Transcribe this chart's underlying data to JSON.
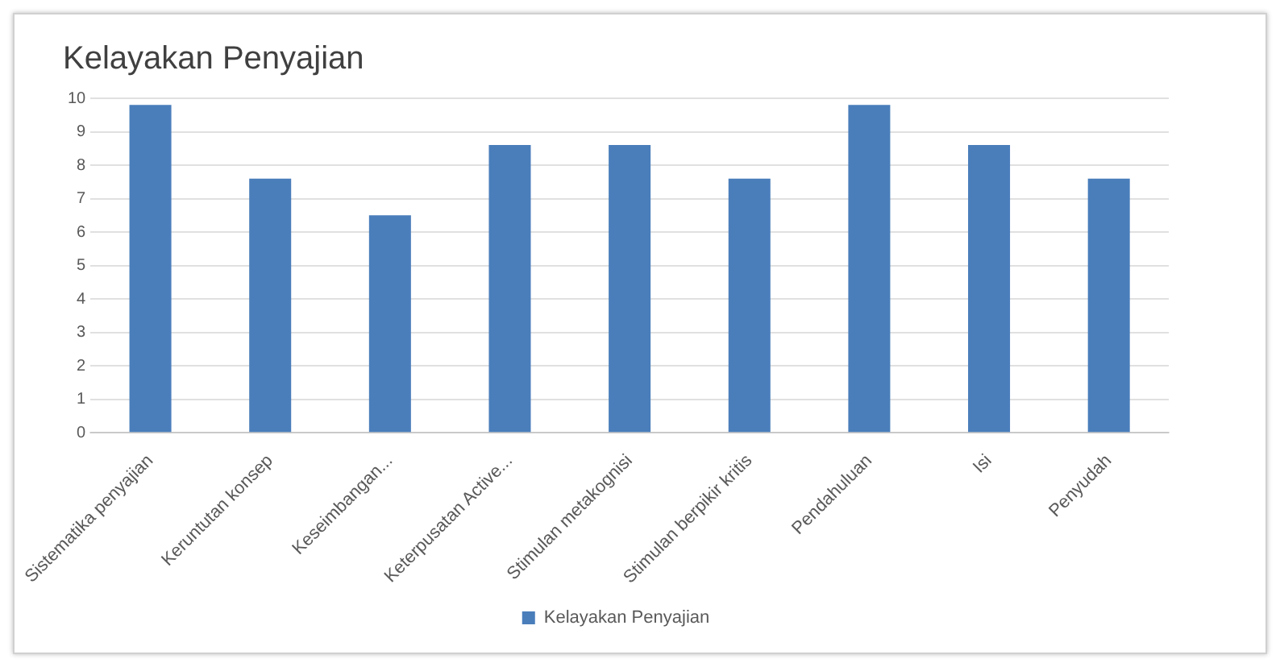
{
  "chart_data": {
    "type": "bar",
    "title": "Kelayakan Penyajian",
    "categories": [
      "Sistematika penyajian",
      "Keruntutan konsep",
      "Keseimbangan...",
      "Keterpusatan Active...",
      "Stimulan metakognisi",
      "Stimulan berpikir kritis",
      "Pendahuluan",
      "Isi",
      "Penyudah"
    ],
    "series": [
      {
        "name": "Kelayakan Penyajian",
        "color": "#4a7ebb",
        "values": [
          9.8,
          7.6,
          6.5,
          8.6,
          8.6,
          7.6,
          9.8,
          8.6,
          7.6
        ]
      }
    ],
    "ylim": [
      0,
      10
    ],
    "yticks": [
      0,
      1,
      2,
      3,
      4,
      5,
      6,
      7,
      8,
      9,
      10
    ],
    "grid": "y",
    "legend": "bottom"
  }
}
